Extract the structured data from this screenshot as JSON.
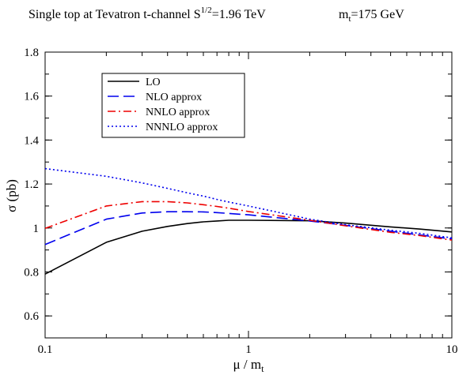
{
  "chart_data": {
    "type": "line",
    "title": {
      "lead": "Single top  at  Tevatron  t-channel  S",
      "sup": "1/2",
      "energy": "=1.96 TeV",
      "mass_main": "m",
      "mass_sub": "t",
      "mass_value": "=175 GeV"
    },
    "xlabel": {
      "main": "μ / m",
      "sub": "t"
    },
    "ylabel": "σ  (pb)",
    "x_scale": "log",
    "xlim": [
      0.1,
      10
    ],
    "ylim": [
      0.5,
      1.8
    ],
    "x_ticks": [
      {
        "value": 0.1,
        "label": "0.1"
      },
      {
        "value": 1,
        "label": "1"
      },
      {
        "value": 10,
        "label": "10"
      }
    ],
    "y_ticks": [
      {
        "value": 0.6,
        "label": "0.6"
      },
      {
        "value": 0.8,
        "label": "0.8"
      },
      {
        "value": 1.0,
        "label": "1"
      },
      {
        "value": 1.2,
        "label": "1.2"
      },
      {
        "value": 1.4,
        "label": "1.4"
      },
      {
        "value": 1.6,
        "label": "1.6"
      },
      {
        "value": 1.8,
        "label": "1.8"
      }
    ],
    "grid": false,
    "legend_position": "top-left",
    "series": [
      {
        "name": "LO",
        "color": "#000000",
        "dash": "solid",
        "x": [
          0.1,
          0.2,
          0.3,
          0.4,
          0.5,
          0.6,
          0.7,
          0.8,
          1,
          2,
          3,
          5,
          7,
          10
        ],
        "y": [
          0.79,
          0.935,
          0.985,
          1.007,
          1.02,
          1.028,
          1.032,
          1.035,
          1.035,
          1.033,
          1.022,
          1.005,
          0.995,
          0.982
        ]
      },
      {
        "name": "NLO approx",
        "color": "#0000ee",
        "dash": "long-dash",
        "x": [
          0.1,
          0.2,
          0.3,
          0.4,
          0.5,
          0.6,
          0.7,
          0.8,
          1,
          2,
          3,
          5,
          7,
          10
        ],
        "y": [
          0.925,
          1.04,
          1.068,
          1.074,
          1.074,
          1.073,
          1.07,
          1.066,
          1.06,
          1.032,
          1.012,
          0.985,
          0.968,
          0.95
        ]
      },
      {
        "name": "NNLO approx",
        "color": "#ee0000",
        "dash": "dash-dot",
        "x": [
          0.1,
          0.2,
          0.3,
          0.4,
          0.5,
          0.6,
          0.7,
          0.8,
          1,
          2,
          3,
          5,
          7,
          10
        ],
        "y": [
          0.998,
          1.1,
          1.12,
          1.12,
          1.114,
          1.106,
          1.098,
          1.09,
          1.075,
          1.035,
          1.01,
          0.98,
          0.965,
          0.945
        ]
      },
      {
        "name": "NNNLO approx",
        "color": "#0000ee",
        "dash": "dotted",
        "x": [
          0.1,
          0.2,
          0.3,
          0.4,
          0.5,
          0.6,
          0.7,
          0.8,
          1,
          2,
          3,
          5,
          7,
          10
        ],
        "y": [
          1.27,
          1.235,
          1.205,
          1.18,
          1.16,
          1.145,
          1.13,
          1.118,
          1.1,
          1.04,
          1.015,
          0.99,
          0.975,
          0.955
        ]
      }
    ]
  }
}
